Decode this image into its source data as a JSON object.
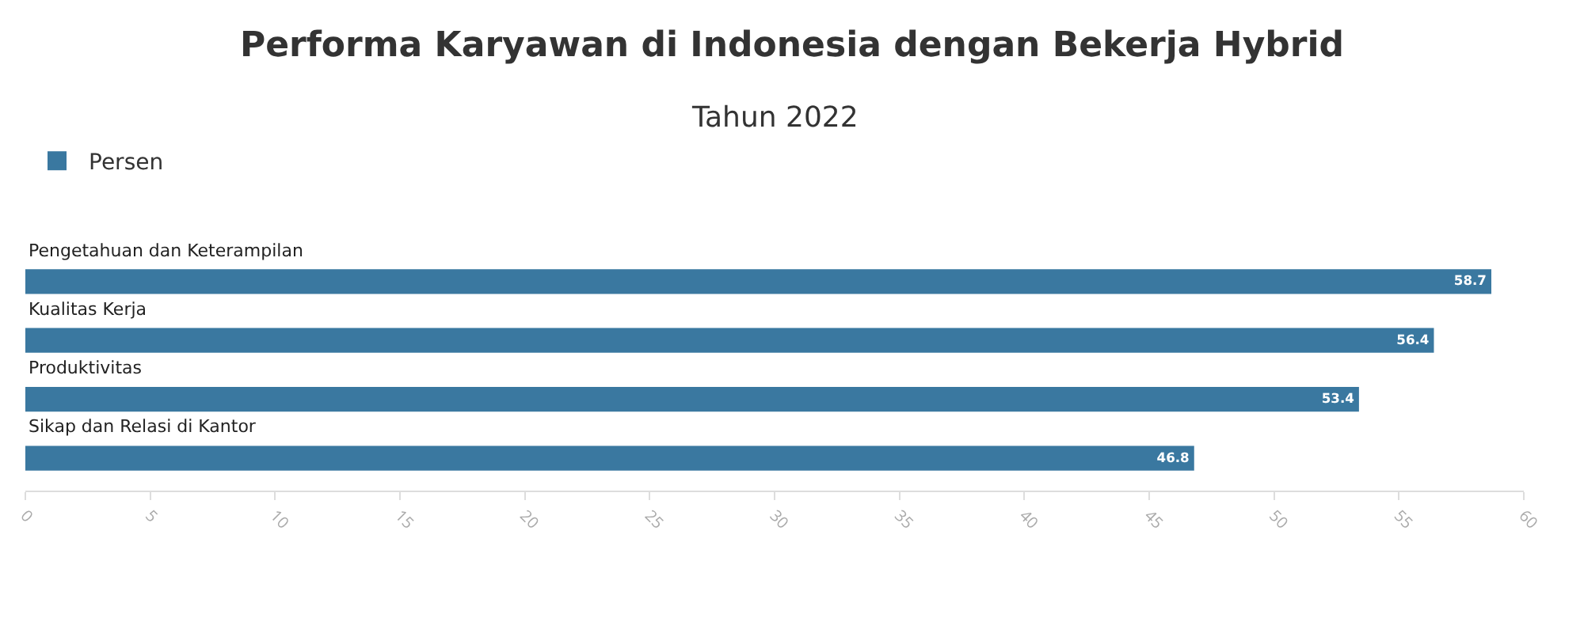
{
  "chart_data": {
    "type": "bar",
    "orientation": "horizontal",
    "title": "Performa Karyawan di Indonesia dengan Bekerja Hybrid",
    "subtitle": "Tahun 2022",
    "categories": [
      "Pengetahuan dan Keterampilan",
      "Kualitas Kerja",
      "Produktivitas",
      "Sikap dan Relasi di Kantor"
    ],
    "series": [
      {
        "name": "Persen",
        "color": "#3a78a0",
        "values": [
          58.7,
          56.4,
          53.4,
          46.8
        ]
      }
    ],
    "xlim": [
      0,
      60
    ],
    "xticks": [
      0,
      5,
      10,
      15,
      20,
      25,
      30,
      35,
      40,
      45,
      50,
      55,
      60
    ],
    "data_labels": true,
    "grid": false,
    "legend": "top left"
  }
}
